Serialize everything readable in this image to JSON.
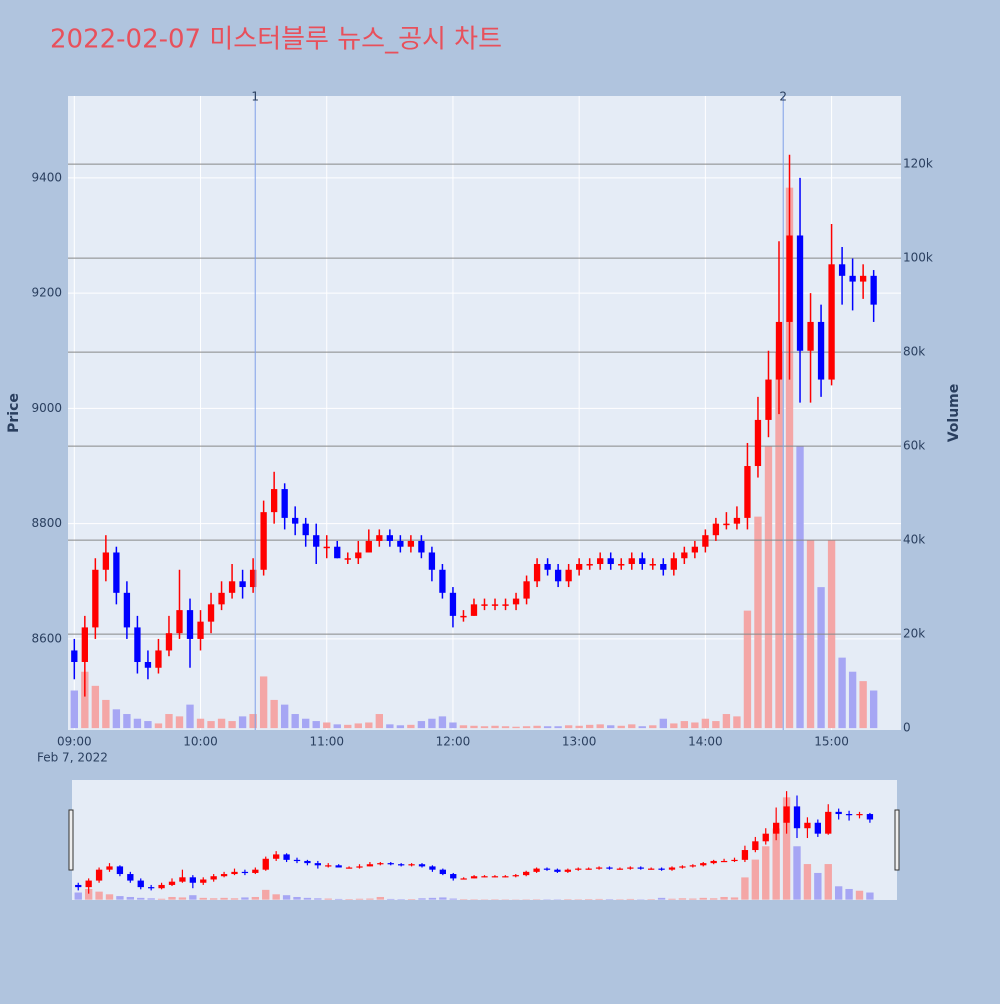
{
  "chart_data": {
    "type": "candlestick",
    "title": "2022-02-07 미스터블루 뉴스_공시 차트",
    "y_label": "Price",
    "y2_label": "Volume",
    "x_axis_date": "Feb 7, 2022",
    "increasing_color": "#ff0000",
    "decreasing_color": "#0000ff",
    "volume_increasing_color": "#f4a6a6",
    "volume_decreasing_color": "#a6a6f4",
    "grid": true,
    "xlim": [
      "2022-02-07 08:57",
      "2022-02-07 15:33"
    ],
    "xticks": [
      {
        "value": "2022-02-07 09:00",
        "label": "09:00"
      },
      {
        "value": "2022-02-07 10:00",
        "label": "10:00"
      },
      {
        "value": "2022-02-07 11:00",
        "label": "11:00"
      },
      {
        "value": "2022-02-07 12:00",
        "label": "12:00"
      },
      {
        "value": "2022-02-07 13:00",
        "label": "13:00"
      },
      {
        "value": "2022-02-07 14:00",
        "label": "14:00"
      },
      {
        "value": "2022-02-07 15:00",
        "label": "15:00"
      }
    ],
    "ylim": [
      8442,
      9542
    ],
    "yticks": [
      8600,
      8800,
      9000,
      9200,
      9400
    ],
    "y2lim": [
      -400,
      134500
    ],
    "y2ticks": [
      0,
      {
        "value": 20000,
        "label": "20k"
      },
      {
        "value": 40000,
        "label": "40k"
      },
      {
        "value": 60000,
        "label": "60k"
      },
      {
        "value": 80000,
        "label": "80k"
      },
      {
        "value": 100000,
        "label": "100k"
      },
      {
        "value": 120000,
        "label": "120k"
      }
    ],
    "annotations": [
      {
        "x": "2022-02-07 10:26",
        "text": "1"
      },
      {
        "x": "2022-02-07 14:37",
        "text": "2"
      }
    ],
    "x": [
      "2022-02-07 09:00",
      "2022-02-07 09:05",
      "2022-02-07 09:10",
      "2022-02-07 09:15",
      "2022-02-07 09:20",
      "2022-02-07 09:25",
      "2022-02-07 09:30",
      "2022-02-07 09:35",
      "2022-02-07 09:40",
      "2022-02-07 09:45",
      "2022-02-07 09:50",
      "2022-02-07 09:55",
      "2022-02-07 10:00",
      "2022-02-07 10:05",
      "2022-02-07 10:10",
      "2022-02-07 10:15",
      "2022-02-07 10:20",
      "2022-02-07 10:25",
      "2022-02-07 10:30",
      "2022-02-07 10:35",
      "2022-02-07 10:40",
      "2022-02-07 10:45",
      "2022-02-07 10:50",
      "2022-02-07 10:55",
      "2022-02-07 11:00",
      "2022-02-07 11:05",
      "2022-02-07 11:10",
      "2022-02-07 11:15",
      "2022-02-07 11:20",
      "2022-02-07 11:25",
      "2022-02-07 11:30",
      "2022-02-07 11:35",
      "2022-02-07 11:40",
      "2022-02-07 11:45",
      "2022-02-07 11:50",
      "2022-02-07 11:55",
      "2022-02-07 12:00",
      "2022-02-07 12:05",
      "2022-02-07 12:10",
      "2022-02-07 12:15",
      "2022-02-07 12:20",
      "2022-02-07 12:25",
      "2022-02-07 12:30",
      "2022-02-07 12:35",
      "2022-02-07 12:40",
      "2022-02-07 12:45",
      "2022-02-07 12:50",
      "2022-02-07 12:55",
      "2022-02-07 13:00",
      "2022-02-07 13:05",
      "2022-02-07 13:10",
      "2022-02-07 13:15",
      "2022-02-07 13:20",
      "2022-02-07 13:25",
      "2022-02-07 13:30",
      "2022-02-07 13:35",
      "2022-02-07 13:40",
      "2022-02-07 13:45",
      "2022-02-07 13:50",
      "2022-02-07 13:55",
      "2022-02-07 14:00",
      "2022-02-07 14:05",
      "2022-02-07 14:10",
      "2022-02-07 14:15",
      "2022-02-07 14:20",
      "2022-02-07 14:25",
      "2022-02-07 14:30",
      "2022-02-07 14:35",
      "2022-02-07 14:40",
      "2022-02-07 14:45",
      "2022-02-07 14:50",
      "2022-02-07 14:55",
      "2022-02-07 15:00",
      "2022-02-07 15:05",
      "2022-02-07 15:10",
      "2022-02-07 15:15",
      "2022-02-07 15:20"
    ],
    "open": [
      8580,
      8560,
      8620,
      8720,
      8750,
      8680,
      8620,
      8560,
      8550,
      8580,
      8610,
      8650,
      8600,
      8630,
      8660,
      8680,
      8700,
      8690,
      8720,
      8820,
      8860,
      8810,
      8800,
      8780,
      8760,
      8760,
      8740,
      8740,
      8750,
      8770,
      8780,
      8770,
      8760,
      8770,
      8750,
      8720,
      8680,
      8640,
      8640,
      8660,
      8660,
      8660,
      8660,
      8670,
      8700,
      8730,
      8720,
      8700,
      8720,
      8730,
      8730,
      8740,
      8730,
      8730,
      8740,
      8730,
      8730,
      8720,
      8740,
      8750,
      8760,
      8780,
      8800,
      8800,
      8810,
      8900,
      8980,
      9050,
      9150,
      9300,
      9100,
      9150,
      9050,
      9250,
      9230,
      9220,
      9230
    ],
    "high": [
      8600,
      8640,
      8740,
      8780,
      8760,
      8700,
      8640,
      8580,
      8600,
      8640,
      8720,
      8670,
      8650,
      8680,
      8700,
      8730,
      8720,
      8740,
      8840,
      8890,
      8870,
      8830,
      8810,
      8800,
      8780,
      8770,
      8750,
      8770,
      8790,
      8790,
      8790,
      8780,
      8780,
      8780,
      8760,
      8730,
      8690,
      8650,
      8670,
      8670,
      8670,
      8670,
      8680,
      8710,
      8740,
      8740,
      8730,
      8730,
      8740,
      8740,
      8750,
      8750,
      8740,
      8750,
      8750,
      8740,
      8740,
      8750,
      8760,
      8770,
      8790,
      8810,
      8820,
      8830,
      8940,
      9020,
      9100,
      9290,
      9440,
      9400,
      9200,
      9180,
      9320,
      9280,
      9260,
      9250,
      9240
    ],
    "low": [
      8530,
      8500,
      8600,
      8700,
      8660,
      8600,
      8540,
      8530,
      8540,
      8570,
      8600,
      8550,
      8580,
      8610,
      8650,
      8670,
      8670,
      8680,
      8710,
      8800,
      8790,
      8780,
      8760,
      8730,
      8740,
      8740,
      8730,
      8730,
      8750,
      8760,
      8760,
      8750,
      8750,
      8740,
      8700,
      8670,
      8620,
      8630,
      8640,
      8650,
      8650,
      8650,
      8650,
      8660,
      8690,
      8710,
      8690,
      8690,
      8710,
      8720,
      8720,
      8720,
      8720,
      8720,
      8720,
      8720,
      8710,
      8710,
      8730,
      8740,
      8750,
      8770,
      8790,
      8790,
      8790,
      8880,
      8950,
      8990,
      9050,
      9010,
      9010,
      9020,
      9040,
      9180,
      9170,
      9190,
      9150
    ],
    "close": [
      8560,
      8620,
      8720,
      8750,
      8680,
      8620,
      8560,
      8550,
      8580,
      8610,
      8650,
      8600,
      8630,
      8660,
      8680,
      8700,
      8690,
      8720,
      8820,
      8860,
      8810,
      8800,
      8780,
      8760,
      8760,
      8740,
      8740,
      8750,
      8770,
      8780,
      8770,
      8760,
      8770,
      8750,
      8720,
      8680,
      8640,
      8640,
      8660,
      8660,
      8660,
      8660,
      8670,
      8700,
      8730,
      8720,
      8700,
      8720,
      8730,
      8730,
      8740,
      8730,
      8730,
      8740,
      8730,
      8730,
      8720,
      8740,
      8750,
      8760,
      8780,
      8800,
      8800,
      8810,
      8900,
      8980,
      9050,
      9150,
      9300,
      9100,
      9150,
      9050,
      9250,
      9230,
      9220,
      9230,
      9180
    ],
    "volume": [
      8000,
      12000,
      9000,
      6000,
      4000,
      3000,
      2000,
      1500,
      1000,
      3000,
      2500,
      5000,
      2000,
      1500,
      2000,
      1500,
      2500,
      3000,
      11000,
      6000,
      5000,
      3000,
      2000,
      1500,
      1200,
      800,
      700,
      1000,
      1200,
      3000,
      800,
      600,
      700,
      1500,
      2000,
      2500,
      1200,
      600,
      500,
      400,
      500,
      400,
      300,
      400,
      500,
      400,
      400,
      600,
      500,
      700,
      800,
      600,
      500,
      800,
      400,
      600,
      2000,
      1000,
      1500,
      1200,
      2000,
      1500,
      3000,
      2500,
      25000,
      45000,
      60000,
      80000,
      115000,
      60000,
      40000,
      30000,
      40000,
      15000,
      12000,
      10000,
      8000
    ]
  }
}
